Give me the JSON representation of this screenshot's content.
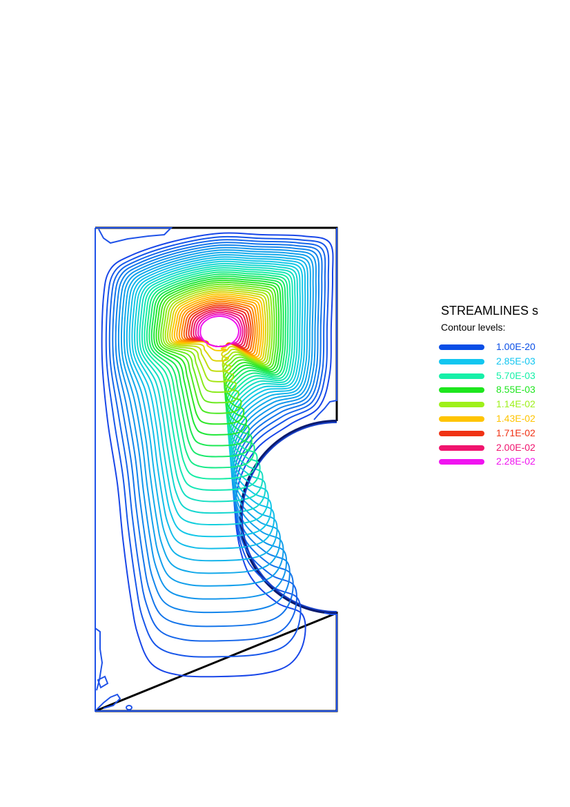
{
  "legend": {
    "title": "STREAMLINES   s",
    "subtitle": "Contour levels:",
    "levels": [
      {
        "label": "1.00E-20",
        "color": "#0a4ee6"
      },
      {
        "label": "2.85E-03",
        "color": "#12c6f0"
      },
      {
        "label": "5.70E-03",
        "color": "#16f0a8"
      },
      {
        "label": "8.55E-03",
        "color": "#1ee61e"
      },
      {
        "label": "1.14E-02",
        "color": "#9ef01a"
      },
      {
        "label": "1.43E-02",
        "color": "#ffc400"
      },
      {
        "label": "1.71E-02",
        "color": "#f03214"
      },
      {
        "label": "2.00E-02",
        "color": "#f0146e"
      },
      {
        "label": "2.28E-02",
        "color": "#f014f0"
      }
    ]
  }
}
